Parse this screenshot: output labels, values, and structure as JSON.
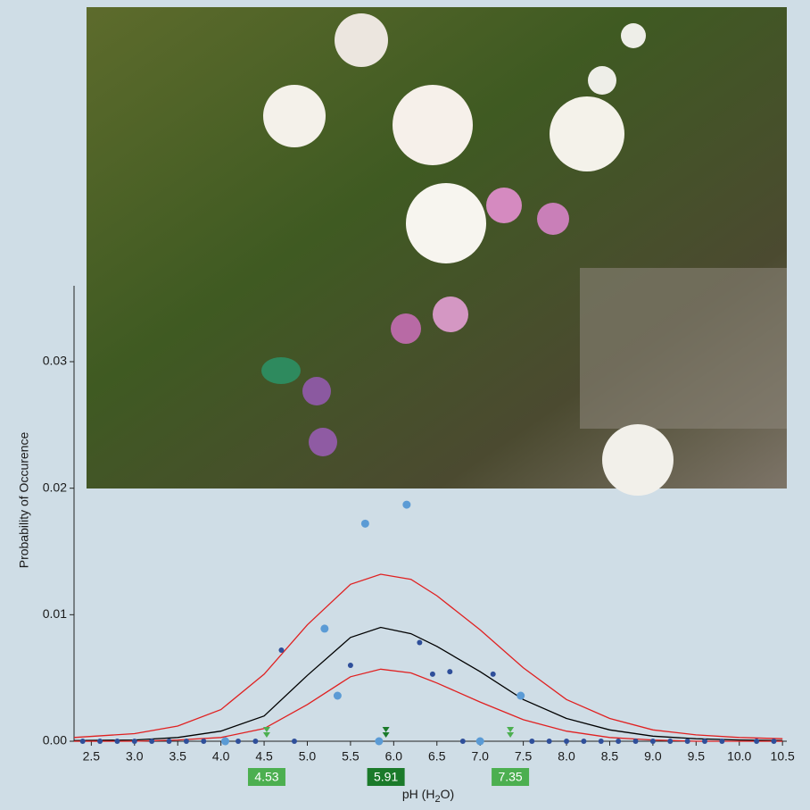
{
  "chart_data": {
    "type": "scatter",
    "y_label": "Probability of Occurence",
    "x_label": [
      "pH (H",
      "2",
      "O)"
    ],
    "xlim": [
      2.3,
      10.55
    ],
    "ylim": [
      0,
      0.036
    ],
    "xticks": [
      2.5,
      {
        "value": 3.0,
        "label": "3.0"
      },
      3.5,
      {
        "value": 4.0,
        "label": "4.0"
      },
      4.5,
      {
        "value": 5.0,
        "label": "5.0"
      },
      5.5,
      {
        "value": 6.0,
        "label": "6.0"
      },
      6.5,
      {
        "value": 7.0,
        "label": "7.0"
      },
      7.5,
      {
        "value": 8.0,
        "label": "8.0"
      },
      8.5,
      {
        "value": 9.0,
        "label": "9.0"
      },
      9.5,
      {
        "value": 10.0,
        "label": "10.0"
      },
      10.5
    ],
    "yticks": [
      {
        "value": 0,
        "label": "0.00"
      },
      0.01,
      0.02,
      0.03
    ],
    "curves": [
      {
        "color": "#e02020",
        "x": [
          2.3,
          3.0,
          3.5,
          4.0,
          4.5,
          5.0,
          5.5,
          5.85,
          6.2,
          6.5,
          7.0,
          7.5,
          8.0,
          8.5,
          9.0,
          9.5,
          10.0,
          10.5
        ],
        "values": [
          0.0003,
          0.0006,
          0.0012,
          0.0025,
          0.0053,
          0.0092,
          0.0124,
          0.0132,
          0.0128,
          0.0115,
          0.0088,
          0.0058,
          0.0033,
          0.0018,
          0.0009,
          0.0005,
          0.0003,
          0.0002
        ]
      },
      {
        "color": "#000000",
        "x": [
          2.3,
          3.0,
          3.5,
          4.0,
          4.5,
          5.0,
          5.5,
          5.85,
          6.2,
          6.5,
          7.0,
          7.5,
          8.0,
          8.5,
          9.0,
          9.5,
          10.0,
          10.5
        ],
        "values": [
          5e-05,
          0.0001,
          0.0003,
          0.0008,
          0.002,
          0.0052,
          0.0082,
          0.009,
          0.0085,
          0.0075,
          0.0055,
          0.0033,
          0.0018,
          0.0009,
          0.0004,
          0.0002,
          0.0001,
          5e-05
        ]
      },
      {
        "color": "#e02020",
        "x": [
          2.3,
          3.0,
          3.5,
          4.0,
          4.5,
          5.0,
          5.5,
          5.85,
          6.2,
          6.5,
          7.0,
          7.5,
          8.0,
          8.5,
          9.0,
          9.5,
          10.0,
          10.5
        ],
        "values": [
          0,
          0,
          0.0001,
          0.0003,
          0.001,
          0.0029,
          0.0051,
          0.0057,
          0.0054,
          0.0046,
          0.0031,
          0.0017,
          0.0008,
          0.0003,
          0.0001,
          0,
          0,
          0
        ]
      }
    ],
    "series": [
      {
        "color": "#5b9bd5",
        "size": 4.5,
        "x": [
          5.67,
          6.15,
          5.2,
          5.35,
          7.47,
          4.05,
          5.83,
          7.0
        ],
        "values": [
          0.0172,
          0.0187,
          0.0089,
          0.0036,
          0.0036,
          0,
          0,
          0
        ]
      },
      {
        "color": "#2f4f9a",
        "size": 3,
        "x": [
          4.7,
          5.5,
          6.3,
          6.45,
          6.65,
          7.15,
          2.4,
          2.6,
          2.8,
          3.0,
          3.2,
          3.4,
          3.6,
          3.8,
          4.2,
          4.4,
          4.85,
          6.8,
          7.6,
          7.8,
          8.0,
          8.2,
          8.4,
          8.6,
          8.8,
          9.0,
          9.2,
          9.4,
          9.6,
          9.8,
          10.2,
          10.4
        ],
        "values": [
          0.0072,
          0.006,
          0.0078,
          0.0053,
          0.0055,
          0.0053,
          0,
          0,
          0,
          0,
          0,
          0,
          0,
          0,
          0,
          0,
          0,
          0,
          0,
          0,
          0,
          0,
          0,
          0,
          0,
          0,
          0,
          0,
          0,
          0,
          0,
          0
        ]
      }
    ],
    "markers": [
      {
        "value": 4.53,
        "color": "#4caf50"
      },
      {
        "value": 5.91,
        "color": "#1b7a2a"
      },
      {
        "value": 7.35,
        "color": "#4caf50"
      }
    ]
  }
}
